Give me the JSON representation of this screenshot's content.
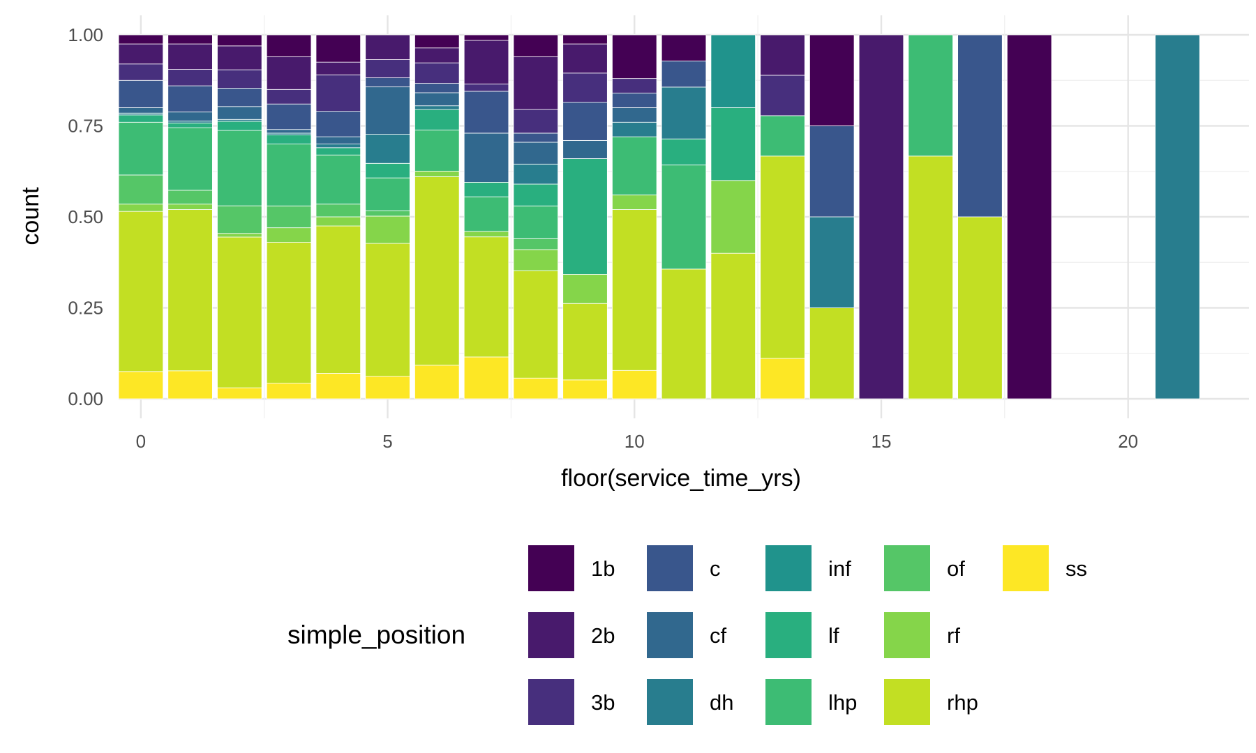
{
  "chart_data": {
    "type": "bar",
    "stacked": "fill",
    "title": "",
    "xlabel": "floor(service_time_yrs)",
    "ylabel": "count",
    "xlim": [
      -0.45,
      22.45
    ],
    "ylim": [
      0,
      1
    ],
    "x_ticks": [
      0,
      5,
      10,
      15,
      20
    ],
    "x_tick_labels": [
      "0",
      "5",
      "10",
      "15",
      "20"
    ],
    "y_ticks": [
      0,
      0.25,
      0.5,
      0.75,
      1
    ],
    "y_tick_labels": [
      "0.00",
      "0.25",
      "0.50",
      "0.75",
      "1.00"
    ],
    "grid": true,
    "legend_position": "bottom",
    "legend_title": "simple_position",
    "series": [
      {
        "name": "1b",
        "color": "#440154"
      },
      {
        "name": "2b",
        "color": "#481a6c"
      },
      {
        "name": "3b",
        "color": "#472f7d"
      },
      {
        "name": "c",
        "color": "#39568c"
      },
      {
        "name": "cf",
        "color": "#31688e"
      },
      {
        "name": "dh",
        "color": "#287d8e"
      },
      {
        "name": "inf",
        "color": "#20938c"
      },
      {
        "name": "lf",
        "color": "#29af7f"
      },
      {
        "name": "lhp",
        "color": "#3dbc74"
      },
      {
        "name": "of",
        "color": "#55c667"
      },
      {
        "name": "rf",
        "color": "#85d54a"
      },
      {
        "name": "rhp",
        "color": "#c2df23"
      },
      {
        "name": "ss",
        "color": "#fde725"
      }
    ],
    "bars": [
      {
        "x": 0,
        "values": {
          "ss": 0.075,
          "rhp": 0.44,
          "rf": 0.02,
          "of": 0.08,
          "lhp": 0.145,
          "lf": 0.02,
          "dh": 0.005,
          "cf": 0.015,
          "c": 0.075,
          "3b": 0.045,
          "2b": 0.055,
          "1b": 0.025
        }
      },
      {
        "x": 1,
        "values": {
          "ss": 0.077,
          "rhp": 0.443,
          "rf": 0.015,
          "of": 0.038,
          "lhp": 0.172,
          "lf": 0.013,
          "dh": 0.005,
          "cf": 0.025,
          "c": 0.072,
          "3b": 0.045,
          "2b": 0.07,
          "1b": 0.025
        }
      },
      {
        "x": 2,
        "values": {
          "ss": 0.03,
          "rhp": 0.41,
          "rf": 0.01,
          "of": 0.075,
          "lhp": 0.205,
          "lf": 0.025,
          "dh": 0.005,
          "cf": 0.035,
          "c": 0.05,
          "3b": 0.05,
          "2b": 0.065,
          "1b": 0.03
        }
      },
      {
        "x": 3,
        "values": {
          "ss": 0.043,
          "rhp": 0.387,
          "rf": 0.04,
          "of": 0.06,
          "lhp": 0.17,
          "lf": 0.025,
          "dh": 0.005,
          "cf": 0.01,
          "c": 0.07,
          "3b": 0.04,
          "2b": 0.09,
          "1b": 0.06
        }
      },
      {
        "x": 4,
        "values": {
          "ss": 0.07,
          "rhp": 0.405,
          "rf": 0.025,
          "of": 0.035,
          "lhp": 0.135,
          "lf": 0.02,
          "dh": 0.01,
          "cf": 0.02,
          "c": 0.07,
          "3b": 0.1,
          "2b": 0.035,
          "1b": 0.075
        }
      },
      {
        "x": 5,
        "values": {
          "ss": 0.062,
          "rhp": 0.365,
          "rf": 0.075,
          "of": 0.015,
          "lhp": 0.09,
          "lf": 0.04,
          "dh": 0.08,
          "cf": 0.13,
          "c": 0.025,
          "3b": 0.05,
          "2b": 0.068,
          "1b": 0
        }
      },
      {
        "x": 6,
        "values": {
          "ss": 0.09,
          "rhp": 0.505,
          "rf": 0.015,
          "of": 0,
          "lhp": 0.11,
          "lf": 0.055,
          "dh": 0.01,
          "cf": 0.035,
          "c": 0.025,
          "3b": 0.055,
          "2b": 0.04,
          "1b": 0.035
        }
      },
      {
        "x": 7,
        "values": {
          "ss": 0.115,
          "rhp": 0.33,
          "rf": 0.015,
          "of": 0,
          "lhp": 0.095,
          "lf": 0.04,
          "dh": 0,
          "cf": 0.135,
          "c": 0.115,
          "3b": 0.02,
          "2b": 0.12,
          "1b": 0.015
        }
      },
      {
        "x": 8,
        "values": {
          "ss": 0.057,
          "rhp": 0.295,
          "rf": 0.058,
          "of": 0.03,
          "lhp": 0.09,
          "lf": 0.06,
          "dh": 0.055,
          "cf": 0.06,
          "c": 0.025,
          "3b": 0.065,
          "2b": 0.145,
          "1b": 0.06
        }
      },
      {
        "x": 9,
        "values": {
          "ss": 0.052,
          "rhp": 0.21,
          "rf": 0.08,
          "of": 0,
          "lhp": 0,
          "lf": 0.318,
          "dh": 0,
          "cf": 0.05,
          "c": 0.105,
          "3b": 0.08,
          "2b": 0.08,
          "1b": 0.025
        }
      },
      {
        "x": 10,
        "values": {
          "ss": 0.078,
          "rhp": 0.442,
          "rf": 0.04,
          "of": 0,
          "lhp": 0.16,
          "lf": 0,
          "dh": 0.04,
          "cf": 0.04,
          "c": 0.04,
          "3b": 0.04,
          "2b": 0,
          "1b": 0.12
        }
      },
      {
        "x": 11,
        "values": {
          "ss": 0,
          "rhp": 0.333,
          "rf": 0,
          "of": 0,
          "lhp": 0.267,
          "lf": 0.067,
          "dh": 0.133,
          "cf": 0,
          "c": 0.067,
          "3b": 0,
          "2b": 0,
          "1b": 0.067
        }
      },
      {
        "x": 12,
        "values": {
          "ss": 0,
          "rhp": 0.4,
          "rf": 0.2,
          "of": 0,
          "lhp": 0,
          "lf": 0.2,
          "dh": 0,
          "cf": 0,
          "c": 0,
          "3b": 0,
          "2b": 0,
          "1b": 0,
          "inf": 0.2
        }
      },
      {
        "x": 13,
        "values": {
          "ss": 0.111,
          "rhp": 0.556,
          "rf": 0,
          "of": 0,
          "lhp": 0.111,
          "lf": 0,
          "dh": 0,
          "cf": 0,
          "c": 0,
          "3b": 0.111,
          "2b": 0.111,
          "1b": 0
        }
      },
      {
        "x": 14,
        "values": {
          "rhp": 0.25,
          "dh": 0.25,
          "c": 0.25,
          "1b": 0.25
        }
      },
      {
        "x": 15,
        "values": {
          "2b": 1
        }
      },
      {
        "x": 16,
        "values": {
          "rhp": 0.667,
          "lhp": 0.333
        }
      },
      {
        "x": 17,
        "values": {
          "rhp": 0.5,
          "c": 0.5
        }
      },
      {
        "x": 18,
        "values": {
          "1b": 1
        }
      },
      {
        "x": 21,
        "values": {
          "dh": 1
        }
      }
    ]
  }
}
